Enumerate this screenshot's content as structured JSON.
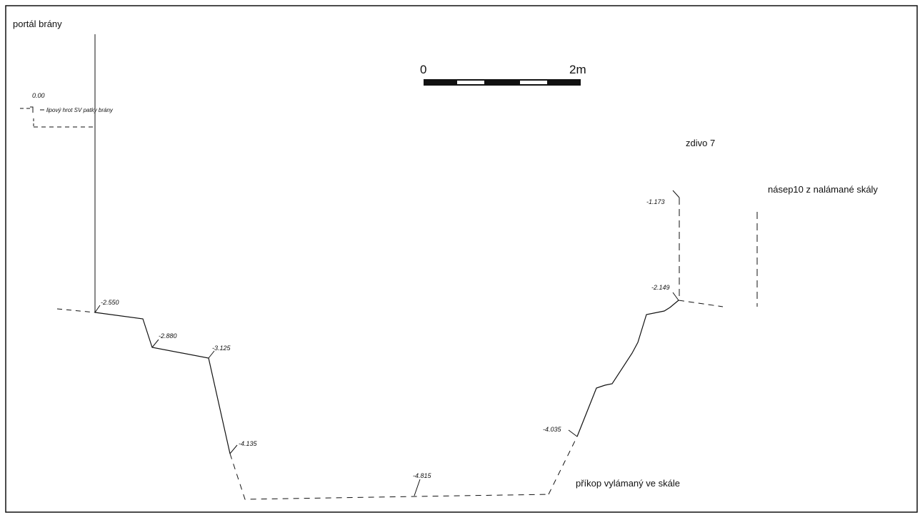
{
  "labels": {
    "portal": "portál brány",
    "wall": "zdivo 7",
    "fill": "násep10 z nalámané skály",
    "moat": "příkop vylámaný ve skále",
    "reference": "lipový hrot SV patky brány"
  },
  "scale_bar": {
    "start": "0",
    "end": "2m"
  },
  "elevations": {
    "ref": "0.00",
    "e1": "-2.550",
    "e2": "-2.880",
    "e3": "-3.125",
    "e4": "-4.135",
    "e5": "-4.815",
    "e6": "-4.035",
    "e7": "-2.149",
    "e8": "-1.173"
  },
  "colors": {
    "ink": "#111111",
    "paper": "#ffffff"
  }
}
